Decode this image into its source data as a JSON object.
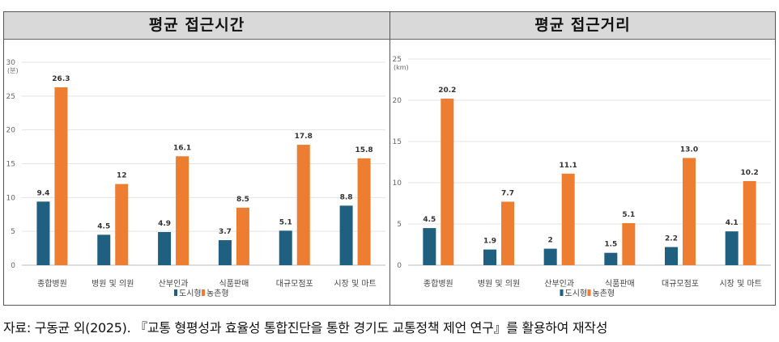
{
  "caption": "자료: 구동균 외(2025). 『교통 형평성과 효율성 통합진단을 통한 경기도 교통정책 제언 연구』를 활용하여 재작성",
  "colors": {
    "urban": "#1f5f7f",
    "rural": "#ed7d31"
  },
  "chart_data": [
    {
      "type": "bar",
      "title": "평균 접근시간",
      "ylabel": "(분)",
      "ylim": [
        0,
        30
      ],
      "yticks": [
        0,
        5,
        10,
        15,
        20,
        25,
        30
      ],
      "categories": [
        "종합병원",
        "병원 및 의원",
        "산부인과",
        "식품판매",
        "대규모점포",
        "시장 및 마트"
      ],
      "series": [
        {
          "name": "도시형",
          "values": [
            9.4,
            4.5,
            4.9,
            3.7,
            5.1,
            8.8
          ],
          "labels": [
            "9.4",
            "4.5",
            "4.9",
            "3.7",
            "5.1",
            "8.8"
          ]
        },
        {
          "name": "농촌형",
          "values": [
            26.3,
            12,
            16.1,
            8.5,
            17.8,
            15.8
          ],
          "labels": [
            "26.3",
            "12",
            "16.1",
            "8.5",
            "17.8",
            "15.8"
          ]
        }
      ],
      "legend": "bottom",
      "grid": true
    },
    {
      "type": "bar",
      "title": "평균 접근거리",
      "ylabel": "(km)",
      "ylim": [
        0,
        25
      ],
      "yticks": [
        0,
        5,
        10,
        15,
        20,
        25
      ],
      "categories": [
        "종합병원",
        "병원 및 의원",
        "산부인과",
        "식품판매",
        "대규모점포",
        "시장 및 마트"
      ],
      "series": [
        {
          "name": "도시형",
          "values": [
            4.5,
            1.9,
            2,
            1.5,
            2.2,
            4.1
          ],
          "labels": [
            "4.5",
            "1.9",
            "2",
            "1.5",
            "2.2",
            "4.1"
          ]
        },
        {
          "name": "농촌형",
          "values": [
            20.2,
            7.7,
            11.1,
            5.1,
            13.0,
            10.2
          ],
          "labels": [
            "20.2",
            "7.7",
            "11.1",
            "5.1",
            "13.0",
            "10.2"
          ]
        }
      ],
      "legend": "bottom",
      "grid": true
    }
  ]
}
